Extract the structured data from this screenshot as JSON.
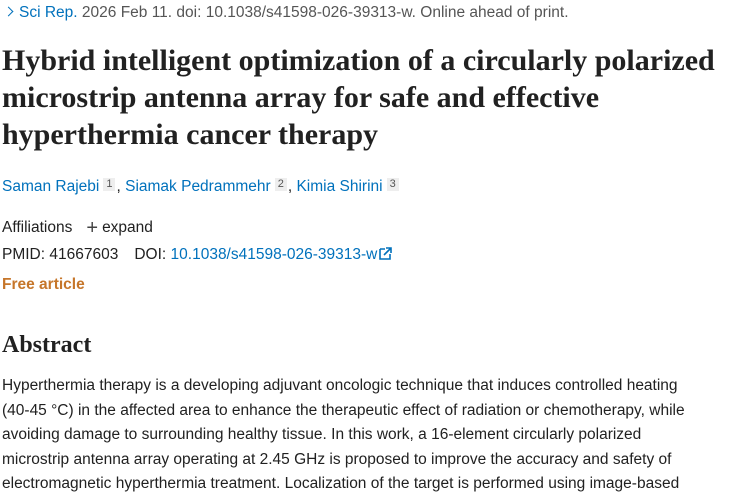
{
  "citation": {
    "journal": "Sci Rep.",
    "rest": " 2026 Feb 11. doi: 10.1038/s41598-026-39313-w. Online ahead of print."
  },
  "title": "Hybrid intelligent optimization of a circularly polarized microstrip antenna array for safe and effective hyperthermia cancer therapy",
  "authors": [
    {
      "name": "Saman Rajebi",
      "aff": "1"
    },
    {
      "name": "Siamak Pedrammehr",
      "aff": "2"
    },
    {
      "name": "Kimia Shirini",
      "aff": "3"
    }
  ],
  "affiliations": {
    "label": "Affiliations",
    "expand": "expand"
  },
  "ids": {
    "pmid_label": "PMID:",
    "pmid": "41667603",
    "doi_label": "DOI:",
    "doi": "10.1038/s41598-026-39313-w"
  },
  "free_label": "Free article",
  "abstract": {
    "heading": "Abstract",
    "lines": [
      "Hyperthermia therapy is a developing adjuvant oncologic technique that induces controlled heating",
      "(40-45 °C) in the affected area to enhance the therapeutic effect of radiation or chemotherapy, while",
      "avoiding damage to surrounding healthy tissue. In this work, a 16-element circularly polarized",
      "microstrip antenna array operating at 2.45 GHz is proposed to improve the accuracy and safety of",
      "electromagnetic hyperthermia treatment. Localization of the target is performed using image-based"
    ]
  }
}
